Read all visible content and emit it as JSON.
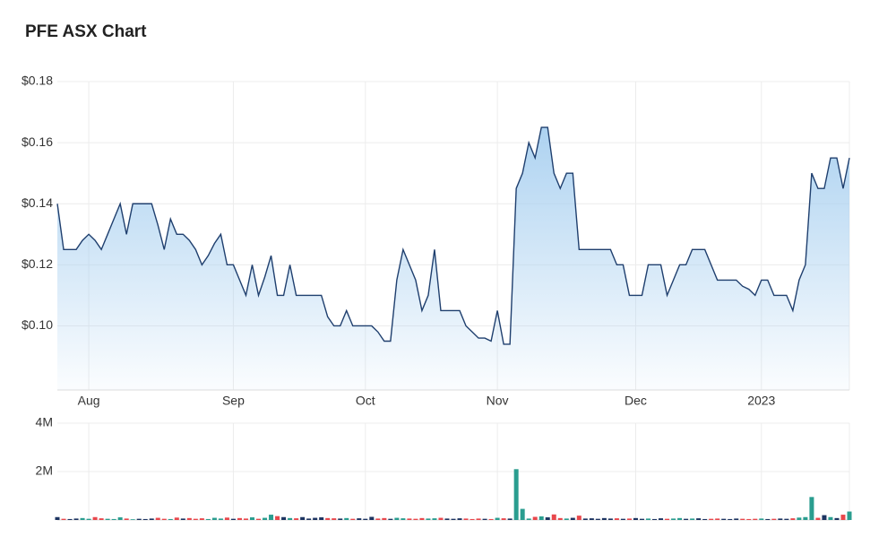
{
  "chart_data": [
    {
      "type": "area",
      "title": "PFE ASX Chart",
      "color": "#1f3f6e",
      "fill": "#a9d0f0",
      "categories": [
        null,
        null,
        null,
        null,
        null,
        "Aug",
        null,
        null,
        null,
        null,
        null,
        null,
        null,
        null,
        null,
        null,
        null,
        null,
        null,
        null,
        null,
        null,
        null,
        null,
        null,
        null,
        null,
        null,
        "Sep",
        null,
        null,
        null,
        null,
        null,
        null,
        null,
        null,
        null,
        null,
        null,
        null,
        null,
        null,
        null,
        null,
        null,
        null,
        null,
        null,
        "Oct",
        null,
        null,
        null,
        null,
        null,
        null,
        null,
        null,
        null,
        null,
        null,
        null,
        null,
        null,
        null,
        null,
        null,
        null,
        null,
        null,
        "Nov",
        null,
        null,
        null,
        null,
        null,
        null,
        null,
        null,
        null,
        null,
        null,
        null,
        null,
        null,
        null,
        null,
        null,
        null,
        null,
        null,
        null,
        "Dec",
        null,
        null,
        null,
        null,
        null,
        null,
        null,
        null,
        null,
        null,
        null,
        null,
        null,
        null,
        null,
        null,
        null,
        null,
        null,
        "2023",
        null,
        null,
        null,
        null,
        null,
        null,
        null,
        null,
        null,
        null,
        null,
        null,
        null,
        null
      ],
      "values": [
        0.14,
        0.125,
        0.125,
        0.125,
        0.128,
        0.13,
        0.128,
        0.125,
        0.13,
        0.135,
        0.14,
        0.13,
        0.14,
        0.14,
        0.14,
        0.14,
        0.133,
        0.125,
        0.135,
        0.13,
        0.13,
        0.128,
        0.125,
        0.12,
        0.123,
        0.127,
        0.13,
        0.12,
        0.12,
        0.115,
        0.11,
        0.12,
        0.11,
        0.116,
        0.123,
        0.11,
        0.11,
        0.12,
        0.11,
        0.11,
        0.11,
        0.11,
        0.11,
        0.103,
        0.1,
        0.1,
        0.105,
        0.1,
        0.1,
        0.1,
        0.1,
        0.098,
        0.095,
        0.095,
        0.115,
        0.125,
        0.12,
        0.115,
        0.105,
        0.11,
        0.125,
        0.105,
        0.105,
        0.105,
        0.105,
        0.1,
        0.098,
        0.096,
        0.096,
        0.095,
        0.105,
        0.094,
        0.094,
        0.145,
        0.15,
        0.16,
        0.155,
        0.165,
        0.165,
        0.15,
        0.145,
        0.15,
        0.15,
        0.125,
        0.125,
        0.125,
        0.125,
        0.125,
        0.125,
        0.12,
        0.12,
        0.11,
        0.11,
        0.11,
        0.12,
        0.12,
        0.12,
        0.11,
        0.115,
        0.12,
        0.12,
        0.125,
        0.125,
        0.125,
        0.12,
        0.115,
        0.115,
        0.115,
        0.115,
        0.113,
        0.112,
        0.11,
        0.115,
        0.115,
        0.11,
        0.11,
        0.11,
        0.105,
        0.115,
        0.12,
        0.15,
        0.145,
        0.145,
        0.155,
        0.155,
        0.145,
        0.155
      ],
      "ylim": [
        0.079,
        0.18
      ],
      "yticks": [
        {
          "value": 0.1,
          "label": "$0.10"
        },
        {
          "value": 0.12,
          "label": "$0.12"
        },
        {
          "value": 0.14,
          "label": "$0.14"
        },
        {
          "value": 0.16,
          "label": "$0.16"
        },
        {
          "value": 0.18,
          "label": "$0.18"
        }
      ],
      "grid": true
    },
    {
      "type": "bar",
      "up_color": "#2a9d8f",
      "down_color": "#e8474c",
      "flat_color": "#1d3461",
      "values": [
        120000,
        50000,
        40000,
        60000,
        80000,
        50000,
        120000,
        70000,
        50000,
        40000,
        110000,
        60000,
        30000,
        50000,
        40000,
        60000,
        90000,
        50000,
        40000,
        100000,
        60000,
        80000,
        50000,
        70000,
        40000,
        90000,
        60000,
        100000,
        50000,
        80000,
        60000,
        110000,
        50000,
        90000,
        220000,
        160000,
        120000,
        80000,
        70000,
        120000,
        60000,
        90000,
        110000,
        80000,
        70000,
        60000,
        80000,
        50000,
        70000,
        50000,
        130000,
        60000,
        80000,
        50000,
        90000,
        70000,
        60000,
        50000,
        80000,
        60000,
        70000,
        90000,
        60000,
        50000,
        70000,
        60000,
        40000,
        60000,
        50000,
        40000,
        90000,
        70000,
        60000,
        2100000,
        460000,
        60000,
        130000,
        150000,
        110000,
        230000,
        80000,
        60000,
        90000,
        180000,
        60000,
        70000,
        50000,
        80000,
        60000,
        70000,
        50000,
        60000,
        80000,
        50000,
        60000,
        40000,
        70000,
        50000,
        60000,
        80000,
        50000,
        60000,
        70000,
        40000,
        50000,
        60000,
        50000,
        40000,
        60000,
        50000,
        40000,
        50000,
        60000,
        40000,
        50000,
        60000,
        50000,
        70000,
        100000,
        120000,
        950000,
        90000,
        200000,
        120000,
        80000,
        220000,
        350000
      ],
      "ylim": [
        0,
        4000000
      ],
      "yticks": [
        {
          "value": 2000000,
          "label": "2M"
        },
        {
          "value": 4000000,
          "label": "4M"
        }
      ],
      "grid": true
    }
  ]
}
